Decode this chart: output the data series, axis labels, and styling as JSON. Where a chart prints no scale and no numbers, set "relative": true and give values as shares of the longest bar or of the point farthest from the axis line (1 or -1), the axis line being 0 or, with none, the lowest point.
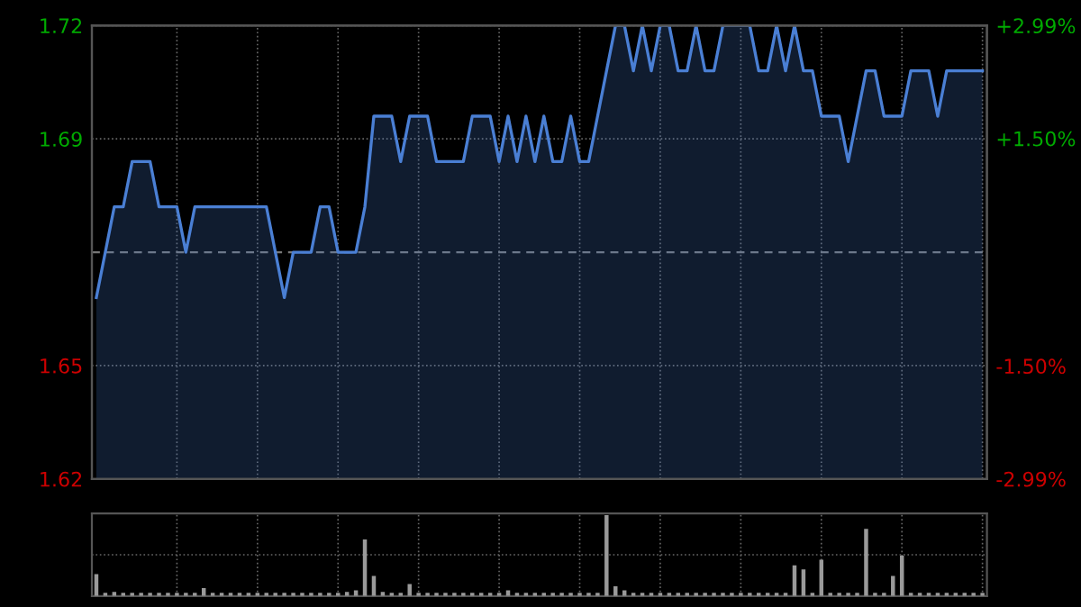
{
  "chart_data": [
    {
      "type": "area",
      "categories": [
        null,
        null,
        null,
        null,
        null,
        null,
        null,
        null,
        null,
        null,
        null,
        null,
        null,
        null,
        null,
        null,
        null,
        null,
        null,
        null,
        null,
        null,
        null,
        null,
        null,
        null,
        null,
        null,
        null,
        null,
        null,
        null,
        null,
        null,
        null,
        null,
        null,
        null,
        null,
        null,
        null,
        null,
        null,
        null,
        null,
        null,
        null,
        null,
        null,
        null,
        null,
        null,
        null,
        null,
        null,
        null,
        null,
        null,
        null,
        null,
        null,
        null,
        null,
        null,
        null,
        null,
        null,
        null,
        null,
        null,
        null,
        null,
        null,
        null,
        null,
        null,
        null,
        null,
        null,
        null,
        null,
        null,
        null,
        null,
        null,
        null,
        null,
        null,
        null,
        null,
        null,
        null,
        null,
        null,
        null,
        null,
        null,
        null,
        null,
        null
      ],
      "series": [
        {
          "color": "#4a7fd4",
          "values": [
            1.66,
            1.67,
            1.68,
            1.68,
            1.69,
            1.69,
            1.69,
            1.68,
            1.68,
            1.68,
            1.67,
            1.68,
            1.68,
            1.68,
            1.68,
            1.68,
            1.68,
            1.68,
            1.68,
            1.68,
            1.67,
            1.66,
            1.67,
            1.67,
            1.67,
            1.68,
            1.68,
            1.67,
            1.67,
            1.67,
            1.68,
            1.7,
            1.7,
            1.7,
            1.69,
            1.7,
            1.7,
            1.7,
            1.69,
            1.69,
            1.69,
            1.69,
            1.7,
            1.7,
            1.7,
            1.69,
            1.7,
            1.69,
            1.7,
            1.69,
            1.7,
            1.69,
            1.69,
            1.7,
            1.69,
            1.69,
            1.7,
            1.71,
            1.72,
            1.72,
            1.71,
            1.72,
            1.71,
            1.72,
            1.72,
            1.71,
            1.71,
            1.72,
            1.71,
            1.71,
            1.72,
            1.72,
            1.72,
            1.72,
            1.71,
            1.71,
            1.72,
            1.71,
            1.72,
            1.71,
            1.71,
            1.7,
            1.7,
            1.7,
            1.69,
            1.7,
            1.71,
            1.71,
            1.7,
            1.7,
            1.7,
            1.71,
            1.71,
            1.71,
            1.7,
            1.71,
            1.71,
            1.71,
            1.71,
            1.71
          ]
        }
      ],
      "ylim": [
        1.62,
        1.72
      ],
      "yticks": [
        1.72,
        {
          "value": 1.695,
          "label": "1.69"
        },
        {
          "value": 1.645,
          "label": "1.65"
        },
        1.62
      ],
      "y2lim": [
        -2.99,
        2.99
      ],
      "y2ticks": [
        {
          "value": 2.99,
          "label": "+2.99%"
        },
        {
          "value": 1.5,
          "label": "+1.50%"
        },
        {
          "value": -1.5,
          "label": "-1.50%"
        },
        {
          "value": -2.99,
          "label": "-2.99%"
        }
      ],
      "ref_lines": [
        {
          "axis": "y",
          "value": 1.67,
          "line_style": "dashed"
        }
      ],
      "grid": true,
      "legend": false,
      "marker": "none",
      "line_style": "solid",
      "tick_labels": "y"
    },
    {
      "type": "bar",
      "relative": true,
      "grid": true,
      "tick_labels": false,
      "categories": [
        null,
        null,
        null,
        null,
        null,
        null,
        null,
        null,
        null,
        null,
        null,
        null,
        null,
        null,
        null,
        null,
        null,
        null,
        null,
        null,
        null,
        null,
        null,
        null,
        null,
        null,
        null,
        null,
        null,
        null,
        null,
        null,
        null,
        null,
        null,
        null,
        null,
        null,
        null,
        null,
        null,
        null,
        null,
        null,
        null,
        null,
        null,
        null,
        null,
        null,
        null,
        null,
        null,
        null,
        null,
        null,
        null,
        null,
        null,
        null,
        null,
        null,
        null,
        null,
        null,
        null,
        null,
        null,
        null,
        null,
        null,
        null,
        null,
        null,
        null,
        null,
        null,
        null,
        null,
        null,
        null,
        null,
        null,
        null,
        null,
        null,
        null,
        null,
        null,
        null,
        null,
        null,
        null,
        null,
        null,
        null,
        null,
        null,
        null,
        null
      ],
      "series": [
        {
          "color": "#9a9a9a",
          "values": [
            0.27,
            0.04,
            0.05,
            0.04,
            0.04,
            0.04,
            0.04,
            0.04,
            0.04,
            0.04,
            0.04,
            0.04,
            0.1,
            0.04,
            0.04,
            0.04,
            0.04,
            0.04,
            0.04,
            0.04,
            0.04,
            0.04,
            0.04,
            0.04,
            0.04,
            0.04,
            0.04,
            0.04,
            0.05,
            0.07,
            0.7,
            0.25,
            0.05,
            0.04,
            0.04,
            0.15,
            0.04,
            0.04,
            0.04,
            0.04,
            0.04,
            0.04,
            0.04,
            0.04,
            0.04,
            0.04,
            0.07,
            0.04,
            0.04,
            0.04,
            0.04,
            0.04,
            0.04,
            0.04,
            0.04,
            0.04,
            0.04,
            1.0,
            0.12,
            0.07,
            0.04,
            0.04,
            0.04,
            0.04,
            0.04,
            0.04,
            0.04,
            0.04,
            0.04,
            0.04,
            0.04,
            0.04,
            0.04,
            0.04,
            0.04,
            0.04,
            0.04,
            0.04,
            0.38,
            0.33,
            0.04,
            0.45,
            0.04,
            0.04,
            0.04,
            0.04,
            0.83,
            0.04,
            0.04,
            0.25,
            0.5,
            0.04,
            0.04,
            0.04,
            0.04,
            0.04,
            0.04,
            0.04,
            0.04,
            0.04
          ]
        }
      ]
    }
  ]
}
